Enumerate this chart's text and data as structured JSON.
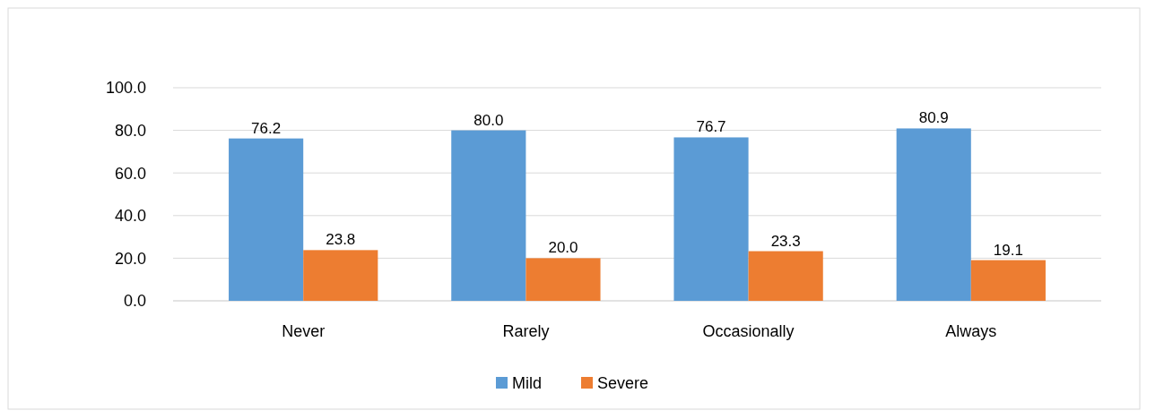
{
  "chart_data": {
    "type": "bar",
    "categories": [
      "Never",
      "Rarely",
      "Occasionally",
      "Always"
    ],
    "series": [
      {
        "name": "Mild",
        "color": "#5b9bd5",
        "values": [
          76.2,
          80.0,
          76.7,
          80.9
        ],
        "value_labels": [
          "76.2",
          "80.0",
          "76.7",
          "80.9"
        ]
      },
      {
        "name": "Severe",
        "color": "#ed7d31",
        "values": [
          23.8,
          20.0,
          23.3,
          19.1
        ],
        "value_labels": [
          "23.8",
          "20.0",
          "23.3",
          "19.1"
        ]
      }
    ],
    "ylim": [
      0,
      100
    ],
    "yticks": [
      {
        "value": 0,
        "label": "0.0"
      },
      {
        "value": 20,
        "label": "20.0"
      },
      {
        "value": 40,
        "label": "40.0"
      },
      {
        "value": 60,
        "label": "60.0"
      },
      {
        "value": 80,
        "label": "80.0"
      },
      {
        "value": 100,
        "label": "100.0"
      }
    ],
    "grid": "y",
    "legend": "bottom"
  }
}
